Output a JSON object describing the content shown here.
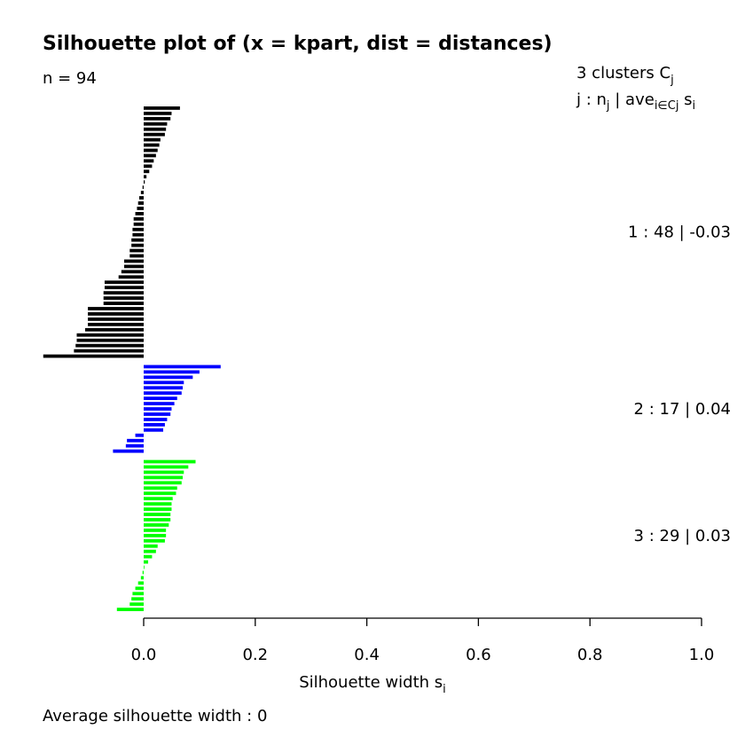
{
  "chart_data": {
    "type": "bar",
    "orientation": "horizontal",
    "title": "Silhouette plot of (x = kpart, dist = distances)",
    "n_label": "n = 94",
    "xlabel": "Silhouette width",
    "xlabel_sub": "i",
    "xlabel_letter": "s",
    "xlim": [
      0.0,
      1.0
    ],
    "x_ticks": [
      "0.0",
      "0.2",
      "0.4",
      "0.6",
      "0.8",
      "1.0"
    ],
    "footer": "Average silhouette width :  0",
    "header_line1": "3  clusters  C",
    "header_line1_sub": "j",
    "header_line2_a": "j :  n",
    "header_line2_b": " | ave",
    "header_line2_c": "  s",
    "header_line2_sub_j": "j",
    "header_line2_sub_iecj": "i∈Cj",
    "header_line2_sub_i": "i",
    "clusters": [
      {
        "label": "1 :   48  |  -0.03",
        "color": "#000000",
        "n": 48,
        "avg": -0.03,
        "values": [
          0.065,
          0.05,
          0.048,
          0.042,
          0.04,
          0.038,
          0.03,
          0.028,
          0.025,
          0.022,
          0.018,
          0.015,
          0.01,
          0.005,
          0.002,
          -0.002,
          -0.005,
          -0.008,
          -0.01,
          -0.012,
          -0.015,
          -0.018,
          -0.018,
          -0.02,
          -0.02,
          -0.022,
          -0.022,
          -0.025,
          -0.025,
          -0.035,
          -0.035,
          -0.04,
          -0.045,
          -0.07,
          -0.07,
          -0.072,
          -0.072,
          -0.072,
          -0.1,
          -0.1,
          -0.1,
          -0.1,
          -0.105,
          -0.12,
          -0.12,
          -0.122,
          -0.125,
          -0.18
        ]
      },
      {
        "label": "2 :   17  |  0.04",
        "color": "#0000ff",
        "n": 17,
        "avg": 0.04,
        "values": [
          0.138,
          0.1,
          0.088,
          0.072,
          0.07,
          0.068,
          0.06,
          0.055,
          0.05,
          0.048,
          0.042,
          0.038,
          0.035,
          -0.015,
          -0.03,
          -0.032,
          -0.055
        ]
      },
      {
        "label": "3 :   29  |  0.03",
        "color": "#00ff00",
        "n": 29,
        "avg": 0.03,
        "values": [
          0.093,
          0.08,
          0.072,
          0.07,
          0.068,
          0.06,
          0.058,
          0.052,
          0.05,
          0.05,
          0.048,
          0.048,
          0.045,
          0.04,
          0.04,
          0.038,
          0.025,
          0.022,
          0.015,
          0.008,
          0.0,
          -0.002,
          -0.005,
          -0.01,
          -0.015,
          -0.02,
          -0.022,
          -0.025,
          -0.048
        ]
      }
    ]
  }
}
